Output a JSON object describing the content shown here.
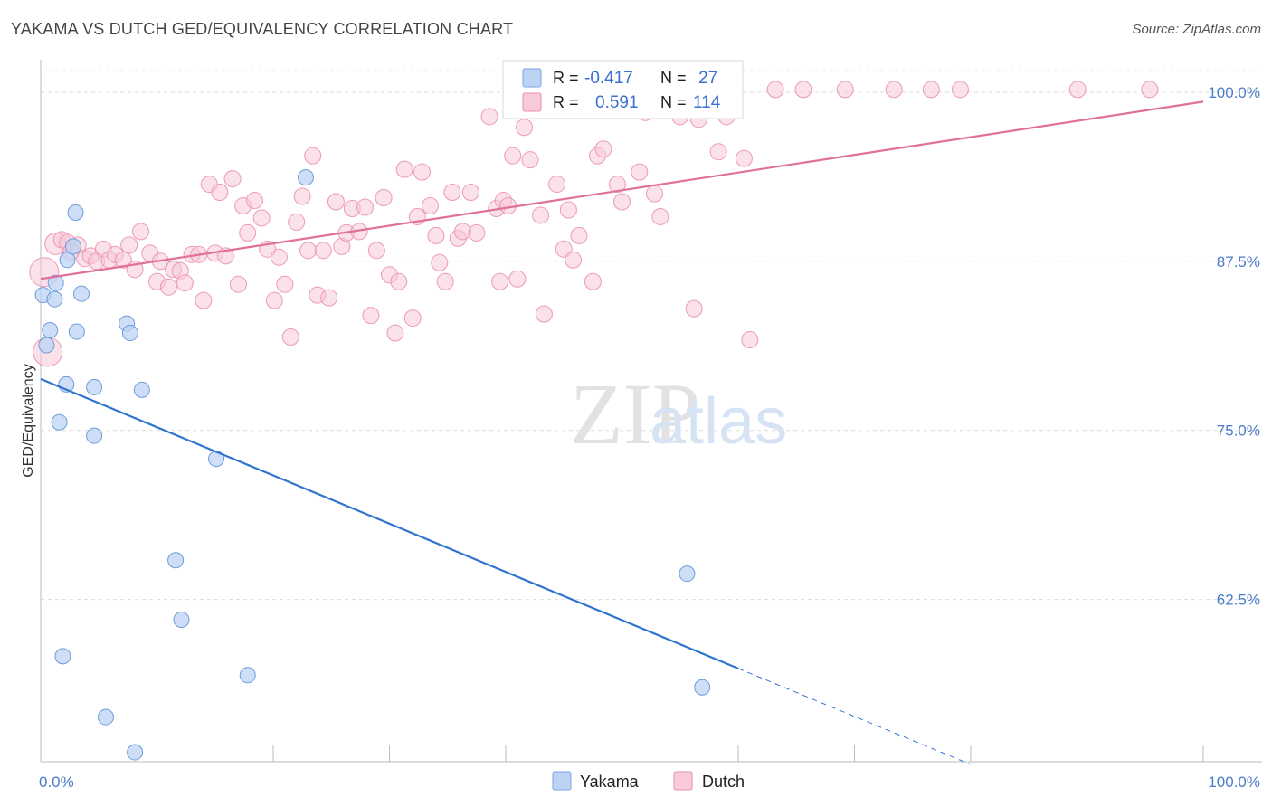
{
  "header": {
    "title": "YAKAMA VS DUTCH GED/EQUIVALENCY CORRELATION CHART",
    "source": "Source: ZipAtlas.com"
  },
  "watermark": {
    "zip": "ZIP",
    "atlas": "atlas"
  },
  "legend_box": {
    "rows": [
      {
        "r_label": "R =",
        "r_value": "-0.417",
        "n_label": "N =",
        "n_value": "27"
      },
      {
        "r_label": "R =",
        "r_value": "0.591",
        "n_label": "N =",
        "n_value": "114"
      }
    ]
  },
  "chart_data": {
    "type": "scatter",
    "title": "YAKAMA VS DUTCH GED/EQUIVALENCY CORRELATION CHART",
    "ylabel": "GED/Equivalency",
    "xlabel": "",
    "xlim": [
      0,
      100
    ],
    "ylim": [
      50.5,
      102
    ],
    "x_tick_labels": [
      "0.0%",
      "100.0%"
    ],
    "y_ticks": [
      62.5,
      75.0,
      87.5,
      100.0
    ],
    "y_tick_labels": [
      "62.5%",
      "75.0%",
      "87.5%",
      "100.0%"
    ],
    "grid": "horizontal dashed",
    "legend": "bottom-center",
    "colors": {
      "Yakama": "#a7c6f0",
      "Dutch": "#f5b8cb",
      "Yakama_line": "#2f74d0",
      "Dutch_line": "#e0709a"
    },
    "series": [
      {
        "name": "Yakama",
        "stats": {
          "R": -0.417,
          "N": 27
        },
        "trend": {
          "x0": 0,
          "y0": 78.8,
          "x1": 60,
          "y1": 57.4,
          "dashed_to_x": 80,
          "dashed_to_y": 50.3
        },
        "points": [
          [
            0.2,
            85.0
          ],
          [
            1.2,
            84.7
          ],
          [
            1.3,
            85.9
          ],
          [
            0.5,
            81.3
          ],
          [
            0.8,
            82.4
          ],
          [
            2.3,
            87.6
          ],
          [
            2.8,
            88.6
          ],
          [
            3.0,
            91.1
          ],
          [
            3.1,
            82.3
          ],
          [
            3.5,
            85.1
          ],
          [
            2.2,
            78.4
          ],
          [
            1.6,
            75.6
          ],
          [
            4.6,
            78.2
          ],
          [
            4.6,
            74.6
          ],
          [
            7.4,
            82.9
          ],
          [
            7.7,
            82.2
          ],
          [
            8.7,
            78.0
          ],
          [
            15.1,
            72.9
          ],
          [
            22.8,
            93.7
          ],
          [
            11.6,
            65.4
          ],
          [
            12.1,
            61.0
          ],
          [
            1.9,
            58.3
          ],
          [
            17.8,
            56.9
          ],
          [
            5.6,
            53.8
          ],
          [
            8.1,
            51.2
          ],
          [
            55.6,
            64.4
          ],
          [
            56.9,
            56.0
          ]
        ]
      },
      {
        "name": "Dutch",
        "stats": {
          "R": 0.591,
          "N": 114
        },
        "trend": {
          "x0": 0,
          "y0": 86.2,
          "x1": 100,
          "y1": 99.3
        },
        "points": [
          [
            0.3,
            86.7
          ],
          [
            0.6,
            80.8
          ],
          [
            1.3,
            88.8
          ],
          [
            1.8,
            89.1
          ],
          [
            2.3,
            88.9
          ],
          [
            2.6,
            88.2
          ],
          [
            3.2,
            88.7
          ],
          [
            3.8,
            87.7
          ],
          [
            4.3,
            87.9
          ],
          [
            4.8,
            87.5
          ],
          [
            5.4,
            88.4
          ],
          [
            5.9,
            87.6
          ],
          [
            6.4,
            88.0
          ],
          [
            7.1,
            87.6
          ],
          [
            7.6,
            88.7
          ],
          [
            8.1,
            86.9
          ],
          [
            8.6,
            89.7
          ],
          [
            9.4,
            88.1
          ],
          [
            10.0,
            86.0
          ],
          [
            10.3,
            87.5
          ],
          [
            11.0,
            85.6
          ],
          [
            11.4,
            86.9
          ],
          [
            12.0,
            86.8
          ],
          [
            12.4,
            85.9
          ],
          [
            13.0,
            88.0
          ],
          [
            13.6,
            88.0
          ],
          [
            14.0,
            84.6
          ],
          [
            14.5,
            93.2
          ],
          [
            15.0,
            88.1
          ],
          [
            15.4,
            92.6
          ],
          [
            15.9,
            87.9
          ],
          [
            16.5,
            93.6
          ],
          [
            17.0,
            85.8
          ],
          [
            17.4,
            91.6
          ],
          [
            17.8,
            89.6
          ],
          [
            18.4,
            92.0
          ],
          [
            19.0,
            90.7
          ],
          [
            19.5,
            88.4
          ],
          [
            20.1,
            84.6
          ],
          [
            20.5,
            87.8
          ],
          [
            21.0,
            85.8
          ],
          [
            21.5,
            81.9
          ],
          [
            22.0,
            90.4
          ],
          [
            22.5,
            92.3
          ],
          [
            23.0,
            88.3
          ],
          [
            23.4,
            95.3
          ],
          [
            23.8,
            85.0
          ],
          [
            24.3,
            88.3
          ],
          [
            24.8,
            84.8
          ],
          [
            25.4,
            91.9
          ],
          [
            25.9,
            88.6
          ],
          [
            26.3,
            89.6
          ],
          [
            26.8,
            91.4
          ],
          [
            27.4,
            89.7
          ],
          [
            27.9,
            91.5
          ],
          [
            28.4,
            83.5
          ],
          [
            28.9,
            88.3
          ],
          [
            29.5,
            92.2
          ],
          [
            30.0,
            86.5
          ],
          [
            30.5,
            82.2
          ],
          [
            30.8,
            86.0
          ],
          [
            31.3,
            94.3
          ],
          [
            32.0,
            83.3
          ],
          [
            32.4,
            90.8
          ],
          [
            32.8,
            94.1
          ],
          [
            33.5,
            91.6
          ],
          [
            34.0,
            89.4
          ],
          [
            34.3,
            87.4
          ],
          [
            34.8,
            86.0
          ],
          [
            35.4,
            92.6
          ],
          [
            35.9,
            89.2
          ],
          [
            36.3,
            89.7
          ],
          [
            37.0,
            92.6
          ],
          [
            37.5,
            89.6
          ],
          [
            38.6,
            98.2
          ],
          [
            39.2,
            91.4
          ],
          [
            39.5,
            86.0
          ],
          [
            39.8,
            92.0
          ],
          [
            40.2,
            91.6
          ],
          [
            40.6,
            95.3
          ],
          [
            41.0,
            86.2
          ],
          [
            42.1,
            95.0
          ],
          [
            43.0,
            90.9
          ],
          [
            43.3,
            83.6
          ],
          [
            44.4,
            93.2
          ],
          [
            45.0,
            88.4
          ],
          [
            45.4,
            91.3
          ],
          [
            45.8,
            87.6
          ],
          [
            46.3,
            89.4
          ],
          [
            47.5,
            86.0
          ],
          [
            47.9,
            95.3
          ],
          [
            48.4,
            95.8
          ],
          [
            49.6,
            93.2
          ],
          [
            50.0,
            91.9
          ],
          [
            51.5,
            94.1
          ],
          [
            52.0,
            98.5
          ],
          [
            52.8,
            92.5
          ],
          [
            53.3,
            90.8
          ],
          [
            55.0,
            98.2
          ],
          [
            56.2,
            84.0
          ],
          [
            58.3,
            95.6
          ],
          [
            59.0,
            98.2
          ],
          [
            60.5,
            95.1
          ],
          [
            61.0,
            81.7
          ],
          [
            63.2,
            100.2
          ],
          [
            65.6,
            100.2
          ],
          [
            69.2,
            100.2
          ],
          [
            73.4,
            100.2
          ],
          [
            76.6,
            100.2
          ],
          [
            79.1,
            100.2
          ],
          [
            89.2,
            100.2
          ],
          [
            95.4,
            100.2
          ],
          [
            56.6,
            98.0
          ],
          [
            41.6,
            97.4
          ]
        ]
      }
    ]
  },
  "bottom_legend": {
    "items": [
      "Yakama",
      "Dutch"
    ]
  }
}
